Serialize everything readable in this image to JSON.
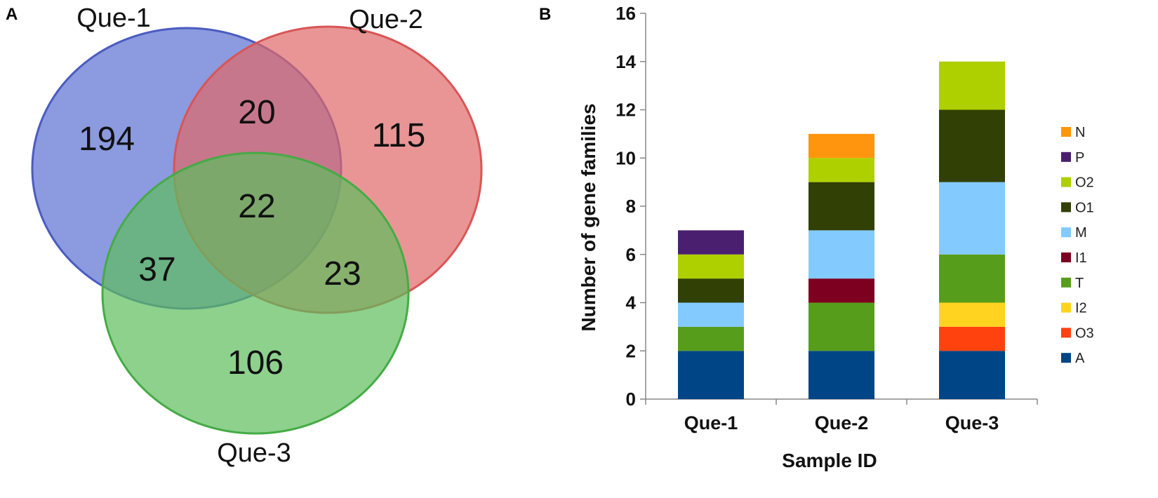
{
  "panels": {
    "venn_letter": "A",
    "bar_letter": "B"
  },
  "chart_data": [
    {
      "type": "venn",
      "sets": [
        {
          "name": "Que-1",
          "color": "#5b6fd2"
        },
        {
          "name": "Que-2",
          "color": "#e06868"
        },
        {
          "name": "Que-3",
          "color": "#5cbd5c"
        }
      ],
      "regions": {
        "que1_only": 194,
        "que2_only": 115,
        "que3_only": 106,
        "que1_que2": 20,
        "que1_que3": 37,
        "que2_que3": 23,
        "all_three": 22
      }
    },
    {
      "type": "bar",
      "stacked": true,
      "categories": [
        "Que-1",
        "Que-2",
        "Que-3"
      ],
      "series": [
        {
          "name": "A",
          "color": "#004586",
          "values": [
            2,
            2,
            2
          ]
        },
        {
          "name": "O3",
          "color": "#ff420e",
          "values": [
            0,
            0,
            1
          ]
        },
        {
          "name": "I2",
          "color": "#ffd320",
          "values": [
            0,
            0,
            1
          ]
        },
        {
          "name": "T",
          "color": "#579d1c",
          "values": [
            1,
            2,
            2
          ]
        },
        {
          "name": "I1",
          "color": "#7e0021",
          "values": [
            0,
            1,
            0
          ]
        },
        {
          "name": "M",
          "color": "#83caff",
          "values": [
            1,
            2,
            3
          ]
        },
        {
          "name": "O1",
          "color": "#314004",
          "values": [
            1,
            2,
            3
          ]
        },
        {
          "name": "O2",
          "color": "#aecf00",
          "values": [
            1,
            1,
            2
          ]
        },
        {
          "name": "P",
          "color": "#4b1f6f",
          "values": [
            1,
            0,
            0
          ]
        },
        {
          "name": "N",
          "color": "#ff950e",
          "values": [
            0,
            1,
            0
          ]
        }
      ],
      "legend_order": [
        "N",
        "P",
        "O2",
        "O1",
        "M",
        "I1",
        "T",
        "I2",
        "O3",
        "A"
      ],
      "legend_position": "right",
      "xlabel": "Sample ID",
      "ylabel": "Number of gene families",
      "ylim": [
        0,
        16
      ],
      "yticks": [
        "0",
        "2",
        "4",
        "6",
        "8",
        "10",
        "12",
        "14",
        "16"
      ],
      "grid": false
    }
  ]
}
